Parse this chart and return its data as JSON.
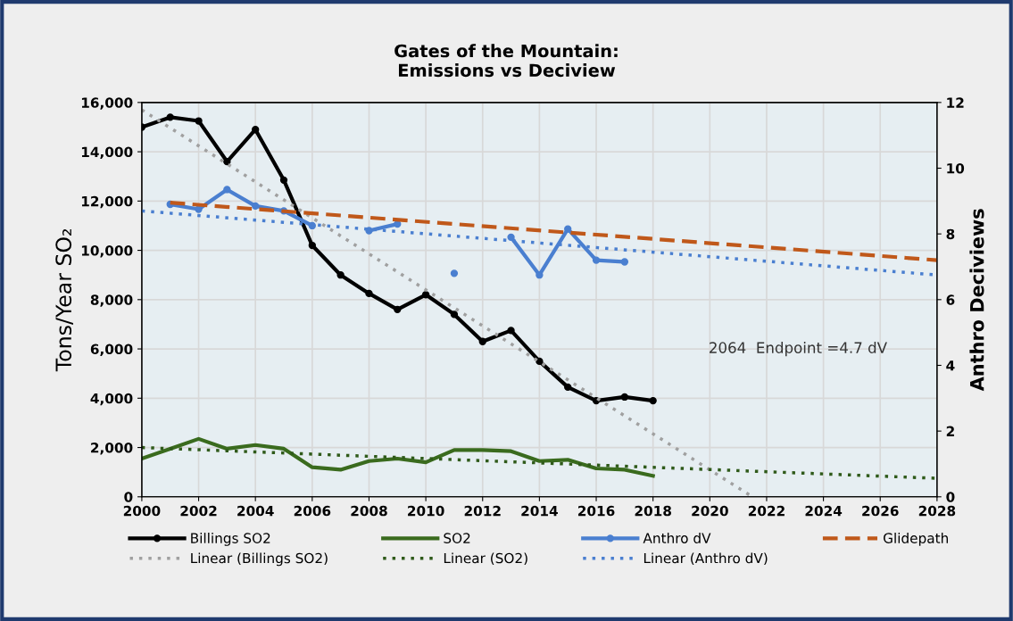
{
  "chart_data": {
    "type": "line",
    "title": "Gates of the Mountain:\nEmissions vs Deciview",
    "ylabel": "Tons/Year SO₂",
    "y2label": "Anthro Deciviews",
    "annotations": [
      "2064  Endpoint =4.7 dV"
    ],
    "x": [
      2000,
      2001,
      2002,
      2003,
      2004,
      2005,
      2006,
      2007,
      2008,
      2009,
      2010,
      2011,
      2012,
      2013,
      2014,
      2015,
      2016,
      2017,
      2018
    ],
    "series": [
      {
        "name": "Billings SO2",
        "color": "#000000",
        "marker": "circle",
        "line_style": "solid",
        "values": [
          15000,
          15400,
          15250,
          13600,
          14900,
          12850,
          10200,
          9000,
          8250,
          7600,
          8200,
          7400,
          6300,
          6750,
          5500,
          4450,
          3900,
          4050,
          3900
        ]
      },
      {
        "name": "SO2",
        "color": "#3a6b1e",
        "line_style": "solid",
        "values": [
          1550,
          1950,
          2350,
          1950,
          2100,
          1950,
          1200,
          1100,
          1450,
          1550,
          1400,
          1900,
          1900,
          1850,
          1450,
          1500,
          1150,
          1100,
          850
        ]
      },
      {
        "name": "Anthro dV",
        "color": "#4a7fd0",
        "marker": "circle",
        "line_style": "solid",
        "axis": "y2",
        "x": [
          2001,
          2002,
          2003,
          2004,
          2005,
          2006,
          2007,
          2008,
          2009,
          2010,
          2011,
          2012,
          2013,
          2014,
          2015,
          2016,
          2017
        ],
        "values": [
          8.9,
          8.75,
          9.35,
          8.85,
          8.7,
          8.25,
          null,
          8.1,
          8.3,
          null,
          6.8,
          null,
          7.9,
          6.75,
          8.15,
          7.2,
          7.15
        ]
      },
      {
        "name": "Glidepath",
        "color": "#c0581a",
        "line_style": "dashed",
        "axis": "y2",
        "x": [
          2001,
          2028
        ],
        "values": [
          8.95,
          7.2
        ]
      },
      {
        "name": "Linear (Billings SO2)",
        "color": "#a0a0a0",
        "line_style": "dotted",
        "x": [
          2000,
          2021.5
        ],
        "values": [
          15700,
          0
        ]
      },
      {
        "name": "Linear (SO2)",
        "color": "#2f5a1a",
        "line_style": "dotted",
        "x": [
          2000,
          2028
        ],
        "values": [
          2000,
          750
        ]
      },
      {
        "name": "Linear (Anthro dV)",
        "color": "#4a7fd0",
        "line_style": "dotted",
        "axis": "y2",
        "x": [
          2000,
          2028
        ],
        "values": [
          8.7,
          6.75
        ]
      }
    ],
    "xlim": [
      2000,
      2028
    ],
    "xticks": [
      2000,
      2002,
      2004,
      2006,
      2008,
      2010,
      2012,
      2014,
      2016,
      2018,
      2020,
      2022,
      2024,
      2026,
      2028
    ],
    "ylim": [
      0,
      16000
    ],
    "yticks": [
      0,
      {
        "value": 2000,
        "label": "2,000"
      },
      {
        "value": 4000,
        "label": "4,000"
      },
      {
        "value": 6000,
        "label": "6,000"
      },
      {
        "value": 8000,
        "label": "8,000"
      },
      {
        "value": 10000,
        "label": "10,000"
      },
      {
        "value": 12000,
        "label": "12,000"
      },
      {
        "value": 14000,
        "label": "14,000"
      },
      {
        "value": 16000,
        "label": "16,000"
      }
    ],
    "y2lim": [
      0,
      12
    ],
    "y2ticks": [
      0,
      2,
      4,
      6,
      8,
      10,
      12
    ],
    "grid": true,
    "legend": "bottom"
  }
}
